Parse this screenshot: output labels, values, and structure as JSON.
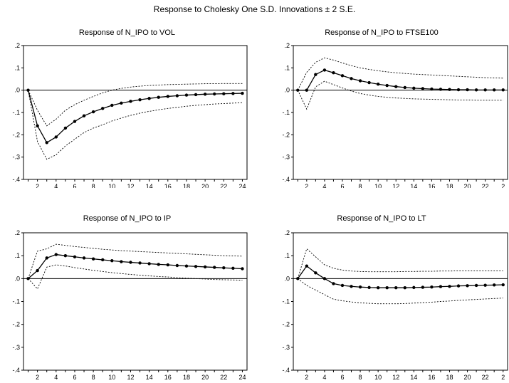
{
  "title": "Response to Cholesky One S.D. Innovations ± 2 S.E.",
  "chart_data": [
    {
      "type": "line",
      "title": "Response of N_IPO to VOL",
      "x": [
        1,
        2,
        3,
        4,
        5,
        6,
        7,
        8,
        9,
        10,
        11,
        12,
        13,
        14,
        15,
        16,
        17,
        18,
        19,
        20,
        21,
        22,
        23,
        24
      ],
      "xticks": [
        "2",
        "4",
        "6",
        "8",
        "10",
        "12",
        "14",
        "16",
        "18",
        "20",
        "22",
        "24"
      ],
      "yticks": [
        ".2",
        ".1",
        ".0",
        "-.1",
        "-.2",
        "-.3",
        "-.4"
      ],
      "ylim": [
        -0.4,
        0.2
      ],
      "series": [
        {
          "role": "response",
          "values": [
            0.0,
            -0.16,
            -0.235,
            -0.21,
            -0.17,
            -0.14,
            -0.115,
            -0.097,
            -0.082,
            -0.068,
            -0.058,
            -0.05,
            -0.043,
            -0.037,
            -0.032,
            -0.028,
            -0.025,
            -0.022,
            -0.02,
            -0.018,
            -0.017,
            -0.016,
            -0.015,
            -0.014
          ]
        },
        {
          "role": "upper_band",
          "values": [
            0.0,
            -0.09,
            -0.16,
            -0.13,
            -0.09,
            -0.065,
            -0.045,
            -0.028,
            -0.012,
            0.0,
            0.008,
            0.014,
            0.018,
            0.021,
            0.023,
            0.025,
            0.026,
            0.027,
            0.028,
            0.029,
            0.029,
            0.03,
            0.03,
            0.03
          ]
        },
        {
          "role": "lower_band",
          "values": [
            0.0,
            -0.23,
            -0.31,
            -0.29,
            -0.25,
            -0.22,
            -0.19,
            -0.17,
            -0.155,
            -0.138,
            -0.125,
            -0.113,
            -0.103,
            -0.095,
            -0.088,
            -0.082,
            -0.077,
            -0.072,
            -0.068,
            -0.065,
            -0.062,
            -0.06,
            -0.058,
            -0.056
          ]
        }
      ]
    },
    {
      "type": "line",
      "title": "Response of N_IPO to FTSE100",
      "x": [
        1,
        2,
        3,
        4,
        5,
        6,
        7,
        8,
        9,
        10,
        11,
        12,
        13,
        14,
        15,
        16,
        17,
        18,
        19,
        20,
        21,
        22,
        23,
        24
      ],
      "xticks": [
        "2",
        "4",
        "6",
        "8",
        "10",
        "12",
        "14",
        "16",
        "18",
        "20",
        "22",
        "2"
      ],
      "yticks": [
        ".2",
        ".1",
        ".0",
        "-.1",
        "-.2",
        "-.3",
        "-.4"
      ],
      "ylim": [
        -0.4,
        0.2
      ],
      "series": [
        {
          "role": "response",
          "values": [
            0.0,
            0.0,
            0.07,
            0.09,
            0.078,
            0.065,
            0.052,
            0.042,
            0.034,
            0.027,
            0.021,
            0.016,
            0.012,
            0.009,
            0.007,
            0.005,
            0.004,
            0.003,
            0.002,
            0.002,
            0.001,
            0.001,
            0.001,
            0.001
          ]
        },
        {
          "role": "upper_band",
          "values": [
            0.0,
            0.08,
            0.125,
            0.145,
            0.135,
            0.122,
            0.11,
            0.1,
            0.093,
            0.087,
            0.082,
            0.078,
            0.075,
            0.072,
            0.07,
            0.068,
            0.066,
            0.064,
            0.062,
            0.06,
            0.058,
            0.056,
            0.055,
            0.054
          ]
        },
        {
          "role": "lower_band",
          "values": [
            0.0,
            -0.085,
            0.015,
            0.04,
            0.025,
            0.01,
            -0.004,
            -0.015,
            -0.022,
            -0.028,
            -0.032,
            -0.035,
            -0.037,
            -0.039,
            -0.04,
            -0.041,
            -0.042,
            -0.043,
            -0.044,
            -0.044,
            -0.045,
            -0.045,
            -0.045,
            -0.045
          ]
        }
      ]
    },
    {
      "type": "line",
      "title": "Response of N_IPO to IP",
      "x": [
        1,
        2,
        3,
        4,
        5,
        6,
        7,
        8,
        9,
        10,
        11,
        12,
        13,
        14,
        15,
        16,
        17,
        18,
        19,
        20,
        21,
        22,
        23,
        24
      ],
      "xticks": [
        "2",
        "4",
        "6",
        "8",
        "10",
        "12",
        "14",
        "16",
        "18",
        "20",
        "22",
        "24"
      ],
      "yticks": [
        ".2",
        ".1",
        ".0",
        "-.1",
        "-.2",
        "-.3",
        "-.4"
      ],
      "ylim": [
        -0.4,
        0.2
      ],
      "series": [
        {
          "role": "response",
          "values": [
            0.0,
            0.035,
            0.09,
            0.105,
            0.1,
            0.095,
            0.09,
            0.086,
            0.082,
            0.078,
            0.074,
            0.071,
            0.068,
            0.065,
            0.062,
            0.06,
            0.057,
            0.055,
            0.053,
            0.051,
            0.049,
            0.047,
            0.045,
            0.043
          ]
        },
        {
          "role": "upper_band",
          "values": [
            0.0,
            0.12,
            0.13,
            0.15,
            0.145,
            0.14,
            0.136,
            0.132,
            0.128,
            0.125,
            0.122,
            0.12,
            0.118,
            0.116,
            0.114,
            0.112,
            0.11,
            0.108,
            0.106,
            0.104,
            0.102,
            0.1,
            0.099,
            0.098
          ]
        },
        {
          "role": "lower_band",
          "values": [
            0.0,
            -0.045,
            0.05,
            0.06,
            0.055,
            0.048,
            0.042,
            0.036,
            0.031,
            0.026,
            0.022,
            0.018,
            0.015,
            0.012,
            0.009,
            0.007,
            0.004,
            0.002,
            0.0,
            -0.002,
            -0.004,
            -0.005,
            -0.006,
            -0.007
          ]
        }
      ]
    },
    {
      "type": "line",
      "title": "Response of N_IPO to LT",
      "x": [
        1,
        2,
        3,
        4,
        5,
        6,
        7,
        8,
        9,
        10,
        11,
        12,
        13,
        14,
        15,
        16,
        17,
        18,
        19,
        20,
        21,
        22,
        23,
        24
      ],
      "xticks": [
        "2",
        "4",
        "6",
        "8",
        "10",
        "12",
        "14",
        "16",
        "18",
        "20",
        "22",
        "2"
      ],
      "yticks": [
        ".2",
        ".1",
        ".0",
        "-.1",
        "-.2",
        "-.3",
        "-.4"
      ],
      "ylim": [
        -0.4,
        0.2
      ],
      "series": [
        {
          "role": "response",
          "values": [
            0.0,
            0.055,
            0.025,
            0.0,
            -0.022,
            -0.03,
            -0.034,
            -0.037,
            -0.039,
            -0.04,
            -0.04,
            -0.04,
            -0.04,
            -0.039,
            -0.038,
            -0.037,
            -0.035,
            -0.034,
            -0.032,
            -0.031,
            -0.03,
            -0.029,
            -0.028,
            -0.027
          ]
        },
        {
          "role": "upper_band",
          "values": [
            0.0,
            0.13,
            0.095,
            0.06,
            0.045,
            0.037,
            0.033,
            0.031,
            0.03,
            0.03,
            0.03,
            0.03,
            0.031,
            0.031,
            0.032,
            0.032,
            0.033,
            0.033,
            0.034,
            0.034,
            0.034,
            0.034,
            0.034,
            0.034
          ]
        },
        {
          "role": "lower_band",
          "values": [
            0.0,
            -0.03,
            -0.05,
            -0.07,
            -0.09,
            -0.097,
            -0.102,
            -0.106,
            -0.108,
            -0.11,
            -0.11,
            -0.11,
            -0.109,
            -0.107,
            -0.105,
            -0.103,
            -0.1,
            -0.098,
            -0.095,
            -0.093,
            -0.091,
            -0.089,
            -0.087,
            -0.085
          ]
        }
      ]
    }
  ]
}
